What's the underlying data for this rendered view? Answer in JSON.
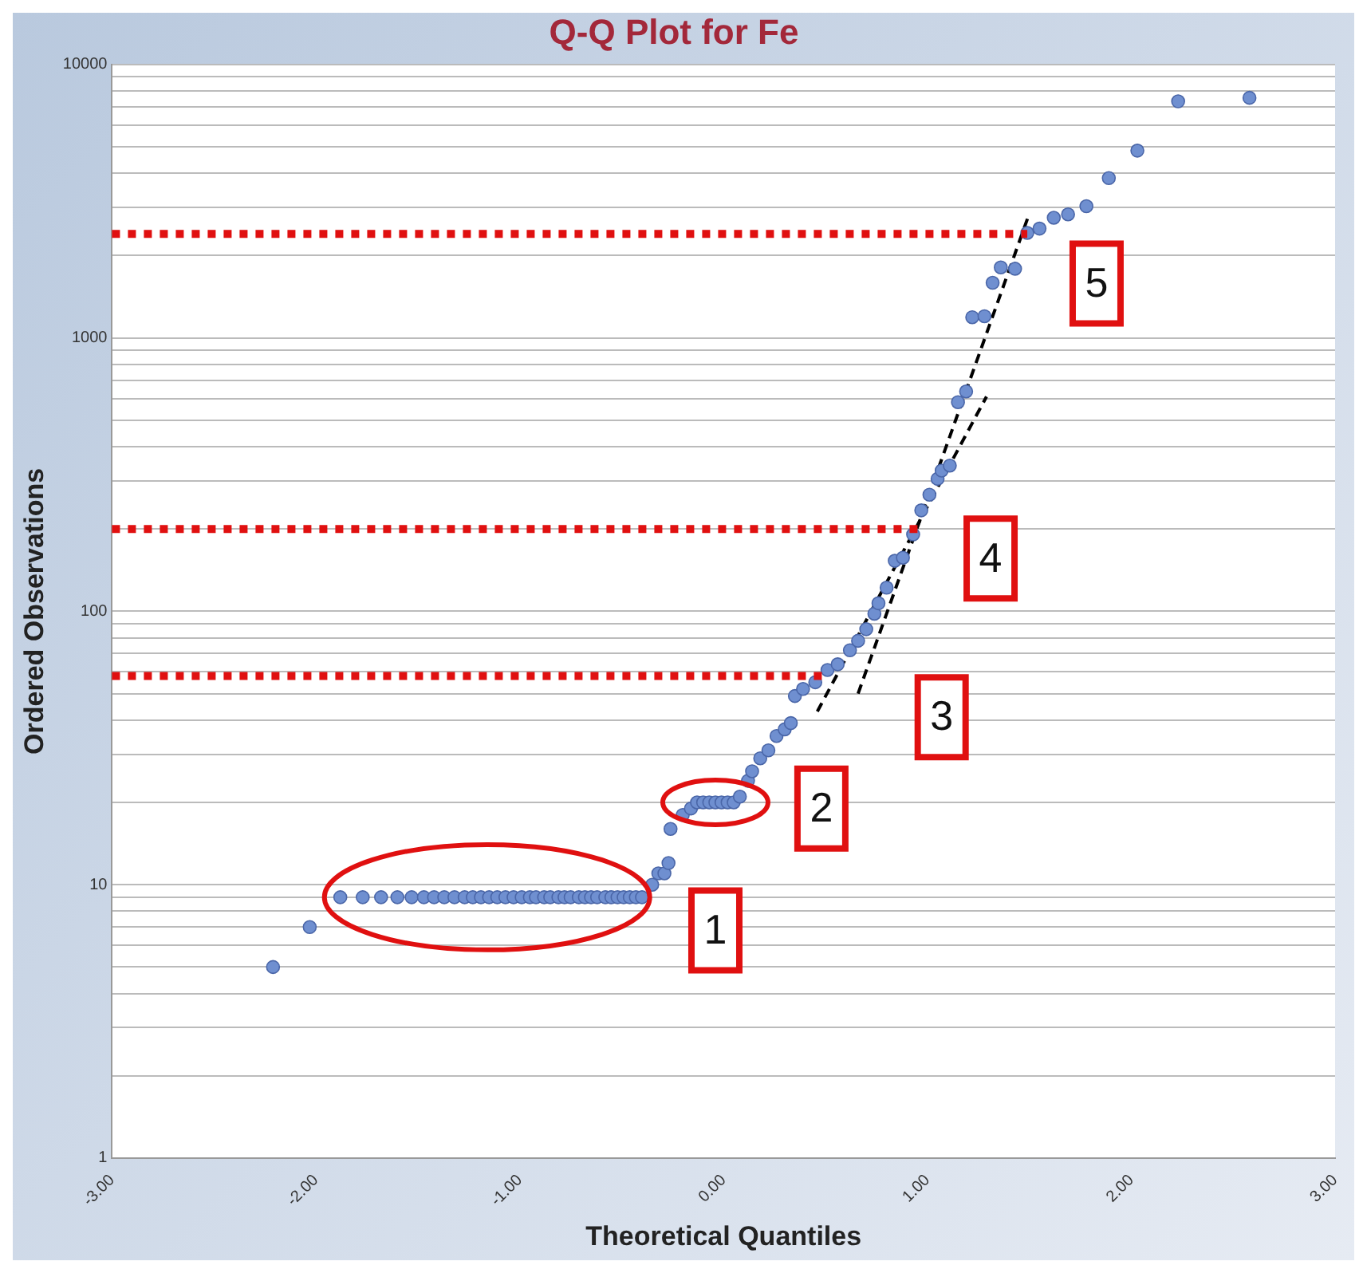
{
  "chart_data": {
    "type": "scatter",
    "title": "Q-Q Plot for Fe",
    "xlabel": "Theoretical Quantiles",
    "ylabel": "Ordered Observations",
    "log": "y",
    "grid": "y",
    "legend": false,
    "marker": "circle",
    "xlim": [
      -3,
      3
    ],
    "xticks": [
      {
        "value": -3,
        "label": "-3.00"
      },
      {
        "value": -2,
        "label": "-2.00"
      },
      {
        "value": -1,
        "label": "-1.00"
      },
      {
        "value": 0,
        "label": "0.00"
      },
      {
        "value": 1,
        "label": "1.00"
      },
      {
        "value": 2,
        "label": "2.00"
      },
      {
        "value": 3,
        "label": "3.00"
      }
    ],
    "ylim": [
      1,
      10000
    ],
    "yticks": [
      1,
      {
        "value": 2,
        "label": null
      },
      {
        "value": 3,
        "label": null
      },
      {
        "value": 4,
        "label": null
      },
      {
        "value": 5,
        "label": null
      },
      {
        "value": 6,
        "label": null
      },
      {
        "value": 7,
        "label": null
      },
      {
        "value": 8,
        "label": null
      },
      {
        "value": 9,
        "label": null
      },
      10,
      {
        "value": 20,
        "label": null
      },
      {
        "value": 30,
        "label": null
      },
      {
        "value": 40,
        "label": null
      },
      {
        "value": 50,
        "label": null
      },
      {
        "value": 60,
        "label": null
      },
      {
        "value": 70,
        "label": null
      },
      {
        "value": 80,
        "label": null
      },
      {
        "value": 90,
        "label": null
      },
      100,
      {
        "value": 200,
        "label": null
      },
      {
        "value": 300,
        "label": null
      },
      {
        "value": 400,
        "label": null
      },
      {
        "value": 500,
        "label": null
      },
      {
        "value": 600,
        "label": null
      },
      {
        "value": 700,
        "label": null
      },
      {
        "value": 800,
        "label": null
      },
      {
        "value": 900,
        "label": null
      },
      1000,
      {
        "value": 2000,
        "label": null
      },
      {
        "value": 3000,
        "label": null
      },
      {
        "value": 4000,
        "label": null
      },
      {
        "value": 5000,
        "label": null
      },
      {
        "value": 6000,
        "label": null
      },
      {
        "value": 7000,
        "label": null
      },
      {
        "value": 8000,
        "label": null
      },
      {
        "value": 9000,
        "label": null
      },
      10000
    ],
    "series": [
      {
        "color": "#6f8fd0",
        "x": [
          -2.21,
          -2.03,
          -1.88,
          -1.77,
          -1.68,
          -1.6,
          -1.53,
          -1.47,
          -1.42,
          -1.37,
          -1.32,
          -1.27,
          -1.23,
          -1.19,
          -1.15,
          -1.11,
          -1.07,
          -1.03,
          -0.99,
          -0.95,
          -0.92,
          -0.88,
          -0.85,
          -0.81,
          -0.78,
          -0.75,
          -0.71,
          -0.68,
          -0.65,
          -0.62,
          -0.58,
          -0.55,
          -0.52,
          -0.49,
          -0.46,
          -0.43,
          -0.4,
          -0.35,
          -0.32,
          -0.29,
          -0.27,
          -0.26,
          -0.2,
          -0.16,
          -0.13,
          -0.1,
          -0.07,
          -0.04,
          -0.01,
          0.02,
          0.05,
          0.08,
          0.12,
          0.14,
          0.18,
          0.22,
          0.26,
          0.3,
          0.33,
          0.35,
          0.39,
          0.45,
          0.51,
          0.56,
          0.62,
          0.66,
          0.7,
          0.74,
          0.76,
          0.8,
          0.84,
          0.88,
          0.93,
          0.97,
          1.01,
          1.05,
          1.07,
          1.11,
          1.15,
          1.19,
          1.22,
          1.28,
          1.32,
          1.36,
          1.43,
          1.49,
          1.55,
          1.62,
          1.69,
          1.78,
          1.89,
          2.03,
          2.23,
          2.58
        ],
        "values": [
          5,
          7,
          9,
          9,
          9,
          9,
          9,
          9,
          9,
          9,
          9,
          9,
          9,
          9,
          9,
          9,
          9,
          9,
          9,
          9,
          9,
          9,
          9,
          9,
          9,
          9,
          9,
          9,
          9,
          9,
          9,
          9,
          9,
          9,
          9,
          9,
          9,
          10,
          11,
          11,
          12,
          16,
          18,
          19,
          20,
          20,
          20,
          20,
          20,
          20,
          20,
          21,
          24,
          26,
          29,
          31,
          35,
          37,
          39,
          49,
          52,
          55,
          61,
          64,
          72,
          78,
          86,
          98,
          107,
          122,
          153,
          157,
          191,
          234,
          267,
          305,
          327,
          341,
          582,
          637,
          1190,
          1200,
          1590,
          1810,
          1790,
          2420,
          2510,
          2750,
          2830,
          3030,
          3840,
          4840,
          7330,
          7550
        ]
      },
      {
        "type": "line",
        "color": "#000000",
        "line_style": "dashed",
        "marker": "none",
        "x": [
          0.46,
          1.29
        ],
        "values": [
          43,
          610
        ]
      },
      {
        "type": "line",
        "color": "#000000",
        "line_style": "dashed",
        "marker": "none",
        "x": [
          0.66,
          1.5
        ],
        "values": [
          50,
          2850
        ]
      }
    ],
    "ref_lines": [
      {
        "axis": "y",
        "value": 2400,
        "color": "#e01010",
        "line_style": "dotted"
      },
      {
        "axis": "y",
        "value": 200,
        "color": "#e01010",
        "line_style": "dotted"
      },
      {
        "axis": "y",
        "value": 58,
        "color": "#e01010",
        "line_style": "dotted"
      }
    ],
    "annotations": [
      "1",
      "2",
      "3",
      "4",
      "5"
    ]
  }
}
